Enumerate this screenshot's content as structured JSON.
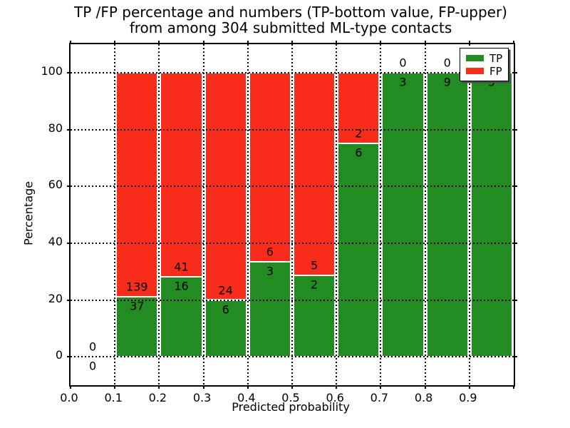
{
  "title": {
    "line1": "TP /FP percentage and numbers (TP-bottom value, FP-upper)",
    "line2": "from among 304 submitted ML-type contacts"
  },
  "chart_data": {
    "type": "bar",
    "stacking": "percentage-stacked",
    "title": "TP /FP percentage and numbers (TP-bottom value, FP-upper) from among 304 submitted ML-type contacts",
    "xlabel": "Predicted probability",
    "ylabel": "Percentage",
    "categories": [
      "0.0-0.1",
      "0.1-0.2",
      "0.2-0.3",
      "0.3-0.4",
      "0.4-0.5",
      "0.5-0.6",
      "0.6-0.7",
      "0.7-0.8",
      "0.8-0.9",
      "0.9-1.0"
    ],
    "series": [
      {
        "name": "TP",
        "color": "#228B22",
        "values": [
          0,
          37,
          16,
          6,
          3,
          2,
          6,
          3,
          9,
          5
        ]
      },
      {
        "name": "FP",
        "color": "#F82C1B",
        "values": [
          0,
          139,
          41,
          24,
          6,
          5,
          2,
          0,
          0,
          0
        ]
      }
    ],
    "tp_percent_by_bin": [
      0,
      21.0,
      28.1,
      20.0,
      33.3,
      28.6,
      75.0,
      100,
      100,
      100
    ],
    "total_contacts": 304,
    "x_tick_labels": [
      "0.0",
      "0.1",
      "0.2",
      "0.3",
      "0.4",
      "0.5",
      "0.6",
      "0.7",
      "0.8",
      "0.9"
    ],
    "y_tick_values": [
      0,
      20,
      40,
      60,
      80,
      100
    ],
    "xlim": [
      0.0,
      1.0
    ],
    "ylim": [
      -10,
      110
    ],
    "grid": true,
    "legend_position": "upper right"
  },
  "legend": {
    "items": [
      {
        "label": "TP",
        "color": "#228B22"
      },
      {
        "label": "FP",
        "color": "#F82C1B"
      }
    ]
  }
}
